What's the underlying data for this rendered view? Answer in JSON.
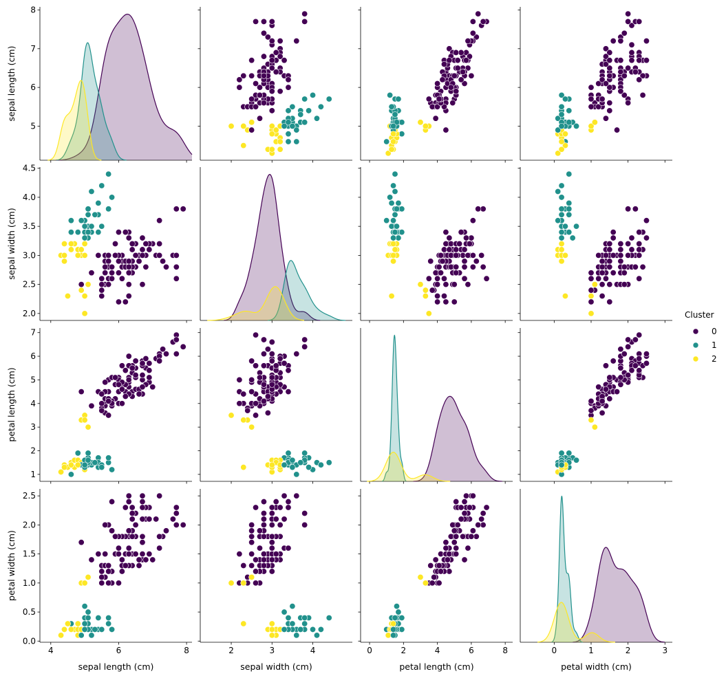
{
  "chart_data": {
    "type": "pairplot",
    "variables": [
      "sepal length (cm)",
      "sepal width (cm)",
      "petal length (cm)",
      "petal width (cm)"
    ],
    "legend_title": "Cluster",
    "series": [
      {
        "name": "0",
        "color": "#440154"
      },
      {
        "name": "1",
        "color": "#21918c"
      },
      {
        "name": "2",
        "color": "#fde725"
      }
    ],
    "axes": [
      {
        "xlim": [
          3.68,
          8.16
        ],
        "xticks": [
          4,
          6,
          8
        ],
        "ylim": [
          4.12,
          8.08
        ],
        "yticks": [
          5,
          6,
          7,
          8
        ]
      },
      {
        "xlim": [
          1.24,
          4.97
        ],
        "xticks": [
          2,
          3,
          4
        ],
        "ylim": [
          1.88,
          4.52
        ],
        "yticks": [
          {
            "value": 2,
            "label": "2.0"
          },
          2.5,
          {
            "value": 3,
            "label": "3.0"
          },
          3.5,
          {
            "value": 4,
            "label": "4.0"
          },
          4.5
        ]
      },
      {
        "xlim": [
          -0.53,
          8.44
        ],
        "xticks": [
          0,
          2,
          4,
          6,
          8
        ],
        "ylim": [
          0.705,
          7.195
        ],
        "yticks": [
          1,
          2,
          3,
          4,
          5,
          6,
          7
        ]
      },
      {
        "xlim": [
          -0.92,
          3.2
        ],
        "xticks": [
          0,
          1,
          2,
          3
        ],
        "ylim": [
          -0.02,
          2.62
        ],
        "yticks": [
          {
            "value": 0,
            "label": "0.0"
          },
          0.5,
          {
            "value": 1,
            "label": "1.0"
          },
          1.5,
          {
            "value": 2,
            "label": "2.0"
          },
          2.5
        ]
      }
    ],
    "values": [
      [
        5.1,
        4.9,
        4.7,
        4.6,
        5.0,
        5.4,
        4.6,
        5.0,
        4.4,
        4.9,
        5.4,
        4.8,
        4.8,
        4.3,
        5.8,
        5.7,
        5.4,
        5.1,
        5.7,
        5.1,
        5.4,
        5.1,
        4.6,
        5.1,
        4.8,
        5.0,
        5.0,
        5.2,
        5.2,
        4.7,
        4.8,
        5.4,
        5.2,
        5.5,
        4.9,
        5.0,
        5.5,
        4.9,
        4.4,
        5.1,
        5.0,
        4.5,
        4.4,
        5.0,
        5.1,
        4.8,
        5.1,
        4.6,
        5.3,
        5.0,
        7.0,
        6.4,
        6.9,
        5.5,
        6.5,
        5.7,
        6.3,
        4.9,
        6.6,
        5.2,
        5.0,
        5.9,
        6.0,
        6.1,
        5.6,
        6.7,
        5.6,
        5.8,
        6.2,
        5.6,
        5.9,
        6.1,
        6.3,
        6.1,
        6.4,
        6.6,
        6.8,
        6.7,
        6.0,
        5.7,
        5.5,
        5.5,
        5.8,
        6.0,
        5.4,
        6.0,
        6.7,
        6.3,
        5.6,
        5.5,
        5.5,
        6.1,
        5.8,
        5.0,
        5.6,
        5.7,
        5.7,
        6.2,
        5.1,
        5.7,
        6.3,
        5.8,
        7.1,
        6.3,
        6.5,
        7.6,
        4.9,
        7.3,
        6.7,
        7.2,
        6.5,
        6.4,
        6.8,
        5.7,
        5.8,
        6.4,
        6.5,
        7.7,
        7.7,
        6.0,
        6.9,
        5.6,
        7.7,
        6.3,
        6.7,
        7.2,
        6.2,
        6.1,
        6.4,
        7.2,
        7.4,
        7.9,
        6.4,
        6.3,
        6.1,
        7.7,
        6.3,
        6.4,
        6.0,
        6.9,
        6.7,
        6.9,
        5.8,
        6.8,
        6.7,
        6.7,
        6.3,
        6.5,
        6.2,
        5.9
      ],
      [
        3.5,
        3.0,
        3.2,
        3.1,
        3.6,
        3.9,
        3.4,
        3.4,
        2.9,
        3.1,
        3.7,
        3.4,
        3.0,
        3.0,
        4.0,
        4.4,
        3.9,
        3.5,
        3.8,
        3.8,
        3.4,
        3.7,
        3.6,
        3.3,
        3.4,
        3.0,
        3.4,
        3.5,
        3.4,
        3.2,
        3.1,
        3.4,
        4.1,
        4.2,
        3.1,
        3.2,
        3.5,
        3.6,
        3.0,
        3.4,
        3.5,
        2.3,
        3.2,
        3.5,
        3.8,
        3.0,
        3.8,
        3.2,
        3.7,
        3.3,
        3.2,
        3.2,
        3.1,
        2.3,
        2.8,
        2.8,
        3.3,
        2.4,
        2.9,
        2.7,
        2.0,
        3.0,
        2.2,
        2.9,
        2.9,
        3.1,
        3.0,
        2.7,
        2.2,
        2.5,
        3.2,
        2.8,
        2.5,
        2.8,
        2.9,
        3.0,
        2.8,
        3.0,
        2.9,
        2.6,
        2.4,
        2.4,
        2.7,
        2.7,
        3.0,
        3.4,
        3.1,
        2.3,
        3.0,
        2.5,
        2.6,
        3.0,
        2.6,
        2.3,
        2.7,
        3.0,
        2.9,
        2.9,
        2.5,
        2.8,
        3.3,
        2.7,
        3.0,
        2.9,
        3.0,
        3.0,
        2.5,
        2.9,
        2.5,
        3.6,
        3.2,
        2.7,
        3.0,
        2.5,
        2.8,
        3.2,
        3.0,
        3.8,
        2.6,
        2.2,
        3.2,
        2.8,
        2.8,
        2.7,
        3.3,
        3.2,
        2.8,
        3.0,
        2.8,
        3.0,
        2.8,
        3.8,
        2.8,
        2.8,
        2.6,
        3.0,
        3.4,
        3.1,
        3.0,
        3.1,
        3.1,
        3.1,
        2.7,
        3.2,
        3.3,
        3.0,
        2.5,
        3.0,
        3.4,
        3.0
      ],
      [
        1.4,
        1.4,
        1.3,
        1.5,
        1.4,
        1.7,
        1.4,
        1.5,
        1.4,
        1.5,
        1.5,
        1.6,
        1.4,
        1.1,
        1.2,
        1.5,
        1.3,
        1.4,
        1.7,
        1.5,
        1.7,
        1.5,
        1.0,
        1.7,
        1.9,
        1.6,
        1.6,
        1.5,
        1.4,
        1.6,
        1.6,
        1.5,
        1.5,
        1.4,
        1.5,
        1.2,
        1.3,
        1.4,
        1.3,
        1.5,
        1.3,
        1.3,
        1.3,
        1.6,
        1.9,
        1.4,
        1.6,
        1.4,
        1.5,
        1.4,
        4.7,
        4.5,
        4.9,
        4.0,
        4.6,
        4.5,
        4.7,
        3.3,
        4.6,
        3.9,
        3.5,
        4.2,
        4.0,
        4.7,
        3.6,
        4.4,
        4.5,
        4.1,
        4.5,
        3.9,
        4.8,
        4.0,
        4.9,
        4.7,
        4.3,
        4.4,
        4.8,
        5.0,
        4.5,
        3.5,
        3.8,
        3.7,
        3.9,
        5.1,
        4.5,
        4.5,
        4.7,
        4.4,
        4.1,
        4.0,
        4.4,
        4.6,
        4.0,
        3.3,
        4.2,
        4.2,
        4.2,
        4.3,
        3.0,
        4.1,
        6.0,
        5.1,
        5.9,
        5.6,
        5.8,
        6.6,
        4.5,
        6.3,
        5.8,
        6.1,
        5.1,
        5.3,
        5.5,
        5.0,
        5.1,
        5.3,
        5.5,
        6.7,
        6.9,
        5.0,
        5.7,
        4.9,
        6.7,
        4.9,
        5.7,
        6.0,
        4.8,
        4.9,
        5.6,
        5.8,
        6.1,
        6.4,
        5.6,
        5.1,
        5.6,
        6.1,
        5.6,
        5.5,
        4.8,
        5.4,
        5.6,
        5.1,
        5.1,
        5.9,
        5.7,
        5.2,
        5.0,
        5.2,
        5.4,
        5.1
      ],
      [
        0.2,
        0.2,
        0.2,
        0.2,
        0.2,
        0.4,
        0.3,
        0.2,
        0.2,
        0.1,
        0.2,
        0.2,
        0.1,
        0.1,
        0.2,
        0.4,
        0.4,
        0.3,
        0.3,
        0.3,
        0.2,
        0.4,
        0.2,
        0.5,
        0.2,
        0.2,
        0.4,
        0.2,
        0.2,
        0.2,
        0.2,
        0.4,
        0.1,
        0.2,
        0.2,
        0.2,
        0.2,
        0.1,
        0.2,
        0.2,
        0.3,
        0.3,
        0.2,
        0.6,
        0.4,
        0.3,
        0.2,
        0.2,
        0.2,
        0.2,
        1.4,
        1.5,
        1.5,
        1.3,
        1.5,
        1.3,
        1.6,
        1.0,
        1.3,
        1.4,
        1.0,
        1.5,
        1.0,
        1.4,
        1.3,
        1.4,
        1.5,
        1.0,
        1.5,
        1.1,
        1.8,
        1.3,
        1.5,
        1.2,
        1.3,
        1.4,
        1.4,
        1.7,
        1.5,
        1.0,
        1.1,
        1.0,
        1.2,
        1.6,
        1.5,
        1.6,
        1.5,
        1.3,
        1.3,
        1.3,
        1.2,
        1.4,
        1.2,
        1.0,
        1.3,
        1.2,
        1.3,
        1.3,
        1.1,
        1.3,
        2.5,
        1.9,
        2.1,
        1.8,
        2.2,
        2.1,
        1.7,
        1.8,
        1.8,
        2.5,
        2.0,
        1.9,
        2.1,
        2.0,
        2.4,
        2.3,
        1.8,
        2.2,
        2.3,
        1.5,
        2.3,
        2.0,
        2.0,
        1.8,
        2.1,
        1.8,
        1.8,
        1.8,
        2.1,
        1.6,
        1.9,
        2.0,
        2.2,
        1.5,
        1.4,
        2.3,
        2.4,
        1.8,
        1.8,
        2.1,
        2.4,
        2.3,
        1.9,
        2.3,
        2.5,
        2.3,
        1.9,
        2.0,
        2.3,
        1.8
      ]
    ],
    "cluster": [
      1,
      2,
      2,
      2,
      1,
      1,
      1,
      1,
      2,
      2,
      1,
      1,
      2,
      2,
      1,
      1,
      1,
      1,
      1,
      1,
      1,
      1,
      1,
      1,
      1,
      2,
      1,
      1,
      1,
      2,
      2,
      1,
      1,
      1,
      2,
      2,
      1,
      1,
      2,
      1,
      1,
      2,
      2,
      1,
      1,
      2,
      1,
      2,
      1,
      1,
      0,
      0,
      0,
      0,
      0,
      0,
      0,
      2,
      0,
      0,
      2,
      0,
      0,
      0,
      0,
      0,
      0,
      0,
      0,
      0,
      0,
      0,
      0,
      0,
      0,
      0,
      0,
      0,
      0,
      0,
      0,
      0,
      0,
      0,
      0,
      0,
      0,
      0,
      0,
      0,
      0,
      0,
      0,
      2,
      0,
      0,
      0,
      0,
      2,
      0,
      0,
      0,
      0,
      0,
      0,
      0,
      0,
      0,
      0,
      0,
      0,
      0,
      0,
      0,
      0,
      0,
      0,
      0,
      0,
      0,
      0,
      0,
      0,
      0,
      0,
      0,
      0,
      0,
      0,
      0,
      0,
      0,
      0,
      0,
      0,
      0,
      0,
      0,
      0,
      0,
      0,
      0,
      0,
      0,
      0,
      0,
      0,
      0,
      0,
      0
    ]
  }
}
